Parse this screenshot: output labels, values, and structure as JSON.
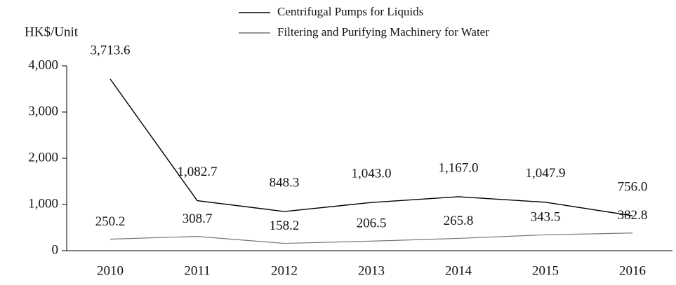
{
  "chart_data": {
    "type": "line",
    "y_label": "HK$/Unit",
    "categories": [
      "2010",
      "2011",
      "2012",
      "2013",
      "2014",
      "2015",
      "2016"
    ],
    "series": [
      {
        "name": "Centrifugal Pumps for Liquids",
        "color": "#000000",
        "values": [
          3713.6,
          1082.7,
          848.3,
          1043.0,
          1167.0,
          1047.9,
          756.0
        ],
        "value_labels": [
          "3,713.6",
          "1,082.7",
          "848.3",
          "1,043.0",
          "1,167.0",
          "1,047.9",
          "756.0"
        ]
      },
      {
        "name": "Filtering and Purifying Machinery for Water",
        "color": "#777777",
        "values": [
          250.2,
          308.7,
          158.2,
          206.5,
          265.8,
          343.5,
          382.8
        ],
        "value_labels": [
          "250.2",
          "308.7",
          "158.2",
          "206.5",
          "265.8",
          "343.5",
          "382.8"
        ]
      }
    ],
    "ylim": [
      0,
      4000
    ],
    "yticks": [
      0,
      {
        "value": 1000,
        "label": "1,000"
      },
      {
        "value": 2000,
        "label": "2,000"
      },
      {
        "value": 3000,
        "label": "3,000"
      },
      {
        "value": 4000,
        "label": "4,000"
      }
    ],
    "legend": "top"
  }
}
